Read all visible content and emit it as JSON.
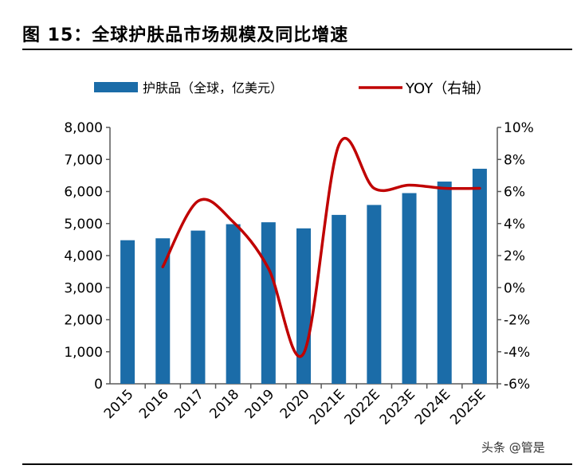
{
  "title": "图 15：全球护肤品市场规模及同比增速",
  "watermark": "头条 @管是",
  "chart_data": {
    "type": "bar+line",
    "categories": [
      "2015",
      "2016",
      "2017",
      "2018",
      "2019",
      "2020",
      "2021E",
      "2022E",
      "2023E",
      "2024E",
      "2025E"
    ],
    "series": [
      {
        "name": "护肤品（全球，亿美元）",
        "type": "bar",
        "axis": "left",
        "color": "#1B6CA8",
        "values": [
          4480,
          4540,
          4780,
          4980,
          5040,
          4850,
          5270,
          5580,
          5950,
          6310,
          6710
        ]
      },
      {
        "name": "YOY（右轴）",
        "type": "line",
        "axis": "right",
        "color": "#C00000",
        "values": [
          null,
          1.3,
          5.4,
          4.1,
          1.2,
          -4.1,
          8.9,
          6.2,
          6.4,
          6.2,
          6.2
        ]
      }
    ],
    "left_axis": {
      "ylim": [
        0,
        8000
      ],
      "ticks": [
        "0",
        "1,000",
        "2,000",
        "3,000",
        "4,000",
        "5,000",
        "6,000",
        "7,000",
        "8,000"
      ]
    },
    "right_axis": {
      "ylim": [
        -6,
        10
      ],
      "ticks": [
        "-6%",
        "-4%",
        "-2%",
        "0%",
        "2%",
        "4%",
        "6%",
        "8%",
        "10%"
      ]
    },
    "legend_position": "top",
    "grid": false
  }
}
